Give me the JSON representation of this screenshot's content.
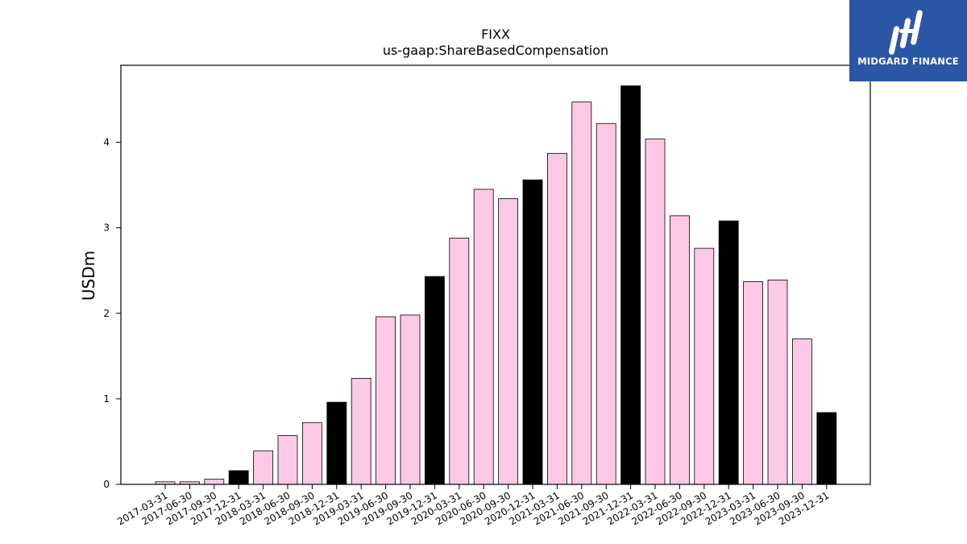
{
  "brand": {
    "name": "MIDGARD FINANCE",
    "bg_color": "#2b56a6"
  },
  "chart_data": {
    "type": "bar",
    "title": "FIXX",
    "subtitle": "us-gaap:ShareBasedCompensation",
    "xlabel": "",
    "ylabel": "USDm",
    "ylim": [
      0,
      4.9
    ],
    "yticks": [
      0,
      1,
      2,
      3,
      4
    ],
    "grid": false,
    "colors": {
      "quarter": "#fcc9e4",
      "year_end": "#000000",
      "edge": "#000000"
    },
    "categories": [
      "2017-03-31",
      "2017-06-30",
      "2017-09-30",
      "2017-12-31",
      "2018-03-31",
      "2018-06-30",
      "2018-09-30",
      "2018-12-31",
      "2019-03-31",
      "2019-06-30",
      "2019-09-30",
      "2019-12-31",
      "2020-03-31",
      "2020-06-30",
      "2020-09-30",
      "2020-12-31",
      "2021-03-31",
      "2021-06-30",
      "2021-09-30",
      "2021-12-31",
      "2022-03-31",
      "2022-06-30",
      "2022-09-30",
      "2022-12-31",
      "2023-03-31",
      "2023-06-30",
      "2023-09-30",
      "2023-12-31"
    ],
    "values": [
      0.03,
      0.03,
      0.06,
      0.16,
      0.39,
      0.57,
      0.72,
      0.96,
      1.24,
      1.96,
      1.98,
      2.43,
      2.88,
      3.45,
      3.34,
      3.56,
      3.87,
      4.47,
      4.22,
      4.66,
      4.04,
      3.14,
      2.76,
      3.08,
      2.37,
      2.39,
      1.7,
      0.84
    ]
  }
}
